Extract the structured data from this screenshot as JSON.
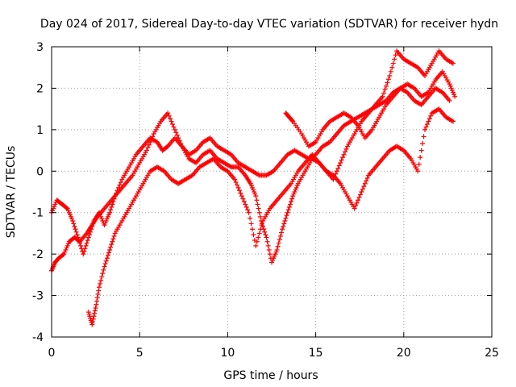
{
  "chart_data": {
    "type": "scatter",
    "title": "Day 024 of 2017, Sidereal Day-to-day VTEC variation (SDTVAR) for receiver hydn",
    "xlabel": "GPS time / hours",
    "ylabel": "SDTVAR / TECUs",
    "xlim": [
      0,
      25
    ],
    "ylim": [
      -4,
      3
    ],
    "xticks": [
      0,
      5,
      10,
      15,
      20,
      25
    ],
    "yticks": [
      -4,
      -3,
      -2,
      -1,
      0,
      1,
      2,
      3
    ],
    "grid": true,
    "marker": "plus",
    "color": "#ff0000",
    "series": [
      {
        "x": [
          0.0,
          0.3,
          0.6,
          0.9,
          1.2,
          1.5,
          1.8,
          2.1,
          2.4,
          2.7,
          3.0,
          3.3,
          3.6,
          4.0,
          4.4,
          4.8,
          5.2,
          5.6,
          6.0,
          6.3,
          6.6,
          7.0,
          7.4,
          7.8,
          8.2,
          8.6,
          9.0,
          9.4,
          9.8,
          10.2,
          10.6,
          11.0,
          11.4,
          11.8,
          12.2,
          12.6,
          13.0,
          13.4,
          13.8,
          14.2,
          14.6,
          15.0,
          15.4,
          15.8,
          16.2,
          16.6,
          17.0,
          17.4,
          17.8,
          18.2,
          18.6,
          19.0,
          19.4,
          19.8,
          20.2,
          20.6,
          21.0,
          21.4,
          21.8,
          22.2,
          22.6,
          22.9
        ],
        "y": [
          -1.0,
          -0.7,
          -0.8,
          -0.9,
          -1.2,
          -1.6,
          -2.0,
          -1.6,
          -1.2,
          -1.0,
          -1.3,
          -1.0,
          -0.6,
          -0.2,
          0.1,
          0.4,
          0.6,
          0.8,
          0.7,
          0.5,
          0.6,
          0.8,
          0.6,
          0.4,
          0.5,
          0.7,
          0.8,
          0.6,
          0.5,
          0.4,
          0.2,
          0.1,
          0.0,
          -0.1,
          -0.1,
          0.0,
          0.2,
          0.4,
          0.5,
          0.4,
          0.3,
          0.4,
          0.6,
          0.7,
          0.9,
          1.1,
          1.2,
          1.3,
          1.4,
          1.5,
          1.6,
          1.7,
          1.9,
          2.0,
          2.1,
          2.0,
          1.8,
          1.9,
          2.2,
          2.4,
          2.1,
          1.8
        ]
      },
      {
        "x": [
          0.0,
          0.2,
          0.4,
          0.7,
          1.0,
          1.3,
          1.6,
          2.0,
          2.3,
          2.6,
          3.0,
          3.4,
          3.8,
          4.2,
          4.6,
          5.0,
          5.4,
          5.8,
          6.2,
          6.6,
          7.0,
          7.4,
          7.8,
          8.2,
          8.6,
          9.0,
          9.4,
          9.8,
          10.2,
          10.6,
          11.0,
          11.3,
          11.6,
          11.9,
          12.2,
          12.5,
          12.8,
          13.1,
          13.4,
          13.7,
          14.0,
          14.4,
          14.8,
          15.2,
          15.6,
          16.0,
          16.4,
          16.8,
          17.2,
          17.6,
          18.0,
          18.4,
          18.8,
          19.2,
          19.6,
          20.0,
          20.4,
          20.8,
          21.2,
          21.6,
          22.0,
          22.4,
          22.8
        ],
        "y": [
          -2.4,
          -2.2,
          -2.1,
          -2.0,
          -1.7,
          -1.6,
          -1.7,
          -1.5,
          -1.3,
          -1.1,
          -0.9,
          -0.7,
          -0.5,
          -0.3,
          -0.1,
          0.2,
          0.5,
          0.9,
          1.2,
          1.4,
          1.0,
          0.6,
          0.3,
          0.2,
          0.4,
          0.5,
          0.3,
          0.2,
          0.1,
          0.1,
          -0.1,
          -0.3,
          -0.6,
          -1.2,
          -1.6,
          -2.2,
          -1.9,
          -1.4,
          -1.0,
          -0.6,
          -0.3,
          0.0,
          0.3,
          0.2,
          0.0,
          -0.2,
          0.2,
          0.6,
          0.9,
          1.2,
          1.4,
          1.6,
          1.8,
          2.3,
          2.9,
          2.7,
          2.6,
          2.5,
          2.3,
          2.6,
          2.9,
          2.7,
          2.6
        ]
      },
      {
        "x": [
          2.1,
          2.3,
          2.5,
          2.7,
          3.0,
          3.3,
          3.6,
          4.0,
          4.4,
          4.8,
          5.2,
          5.6,
          6.0,
          6.4,
          6.8,
          7.2,
          7.6,
          8.0,
          8.4,
          8.8,
          9.2,
          9.6,
          10.0,
          10.4,
          10.8,
          11.2,
          11.6,
          12.0,
          12.4,
          12.8,
          13.2,
          13.6,
          14.0,
          14.4,
          14.8,
          15.2,
          15.6,
          16.0,
          16.4,
          16.8,
          17.2,
          17.6,
          18.0,
          18.4,
          18.8,
          19.2,
          19.6,
          20.0,
          20.4,
          20.8,
          21.2,
          21.6,
          22.0,
          22.4,
          22.8
        ],
        "y": [
          -3.4,
          -3.7,
          -3.3,
          -2.8,
          -2.3,
          -1.9,
          -1.5,
          -1.2,
          -0.9,
          -0.6,
          -0.3,
          0.0,
          0.1,
          0.0,
          -0.2,
          -0.3,
          -0.2,
          -0.1,
          0.1,
          0.2,
          0.3,
          0.1,
          0.0,
          -0.2,
          -0.6,
          -1.0,
          -1.8,
          -1.2,
          -0.9,
          -0.7,
          -0.5,
          -0.3,
          0.0,
          0.2,
          0.4,
          0.2,
          0.0,
          -0.1,
          -0.3,
          -0.6,
          -0.9,
          -0.5,
          -0.1,
          0.1,
          0.3,
          0.5,
          0.6,
          0.5,
          0.3,
          0.0,
          1.0,
          1.4,
          1.5,
          1.3,
          1.2
        ]
      },
      {
        "x": [
          13.3,
          13.5,
          13.7,
          14.2,
          14.6,
          15.0,
          15.4,
          15.8,
          16.2,
          16.6,
          17.0,
          17.4,
          17.8,
          18.2,
          18.6,
          19.0,
          19.4,
          19.8,
          20.2,
          20.6,
          21.0,
          21.4,
          21.8,
          22.2,
          22.6
        ],
        "y": [
          1.4,
          1.3,
          1.2,
          0.9,
          0.6,
          0.7,
          1.0,
          1.2,
          1.3,
          1.4,
          1.3,
          1.1,
          0.8,
          1.0,
          1.3,
          1.6,
          1.8,
          2.0,
          1.9,
          1.7,
          1.6,
          1.8,
          2.0,
          1.9,
          1.7
        ]
      }
    ]
  }
}
